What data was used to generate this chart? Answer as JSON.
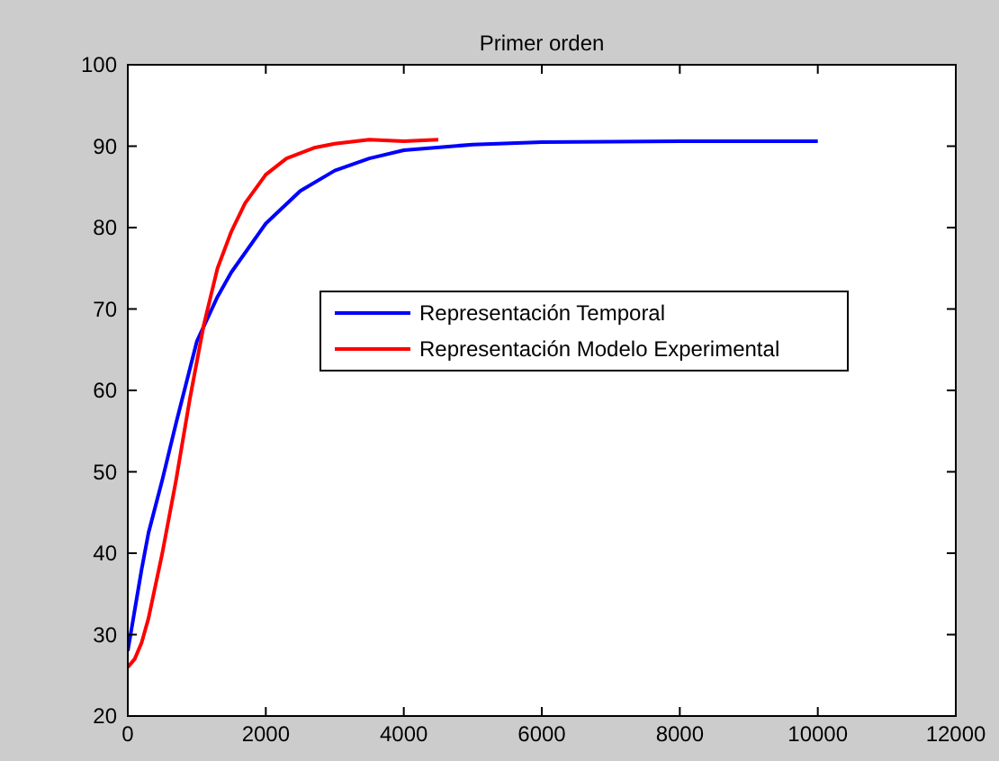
{
  "chart_data": {
    "type": "line",
    "title": "Primer orden",
    "xlim": [
      0,
      12000
    ],
    "xticks": [
      0,
      2000,
      4000,
      6000,
      8000,
      10000,
      12000
    ],
    "ylim": [
      20,
      100
    ],
    "yticks": [
      20,
      30,
      40,
      50,
      60,
      70,
      80,
      90,
      100
    ],
    "grid": false,
    "legend": "right",
    "line_style": "solid",
    "marker": "none",
    "series": [
      {
        "name": "Representación Temporal",
        "color": "#0000ff",
        "x": [
          0,
          100,
          200,
          300,
          500,
          700,
          1000,
          1300,
          1500,
          2000,
          2500,
          3000,
          3500,
          4000,
          5000,
          6000,
          8000,
          10000
        ],
        "values": [
          28,
          33,
          38,
          42.5,
          49,
          56,
          66,
          71.5,
          74.5,
          80.5,
          84.5,
          87,
          88.5,
          89.5,
          90.2,
          90.5,
          90.6,
          90.6
        ]
      },
      {
        "name": "Representación Modelo Experimental",
        "color": "#ff0000",
        "x": [
          0,
          100,
          200,
          300,
          400,
          500,
          700,
          900,
          1100,
          1300,
          1500,
          1700,
          2000,
          2300,
          2700,
          3000,
          3500,
          4000,
          4500
        ],
        "values": [
          26,
          27,
          29,
          32,
          36,
          40,
          49,
          59,
          68,
          75,
          79.5,
          83,
          86.5,
          88.5,
          89.8,
          90.3,
          90.8,
          90.6,
          90.8
        ]
      }
    ]
  }
}
